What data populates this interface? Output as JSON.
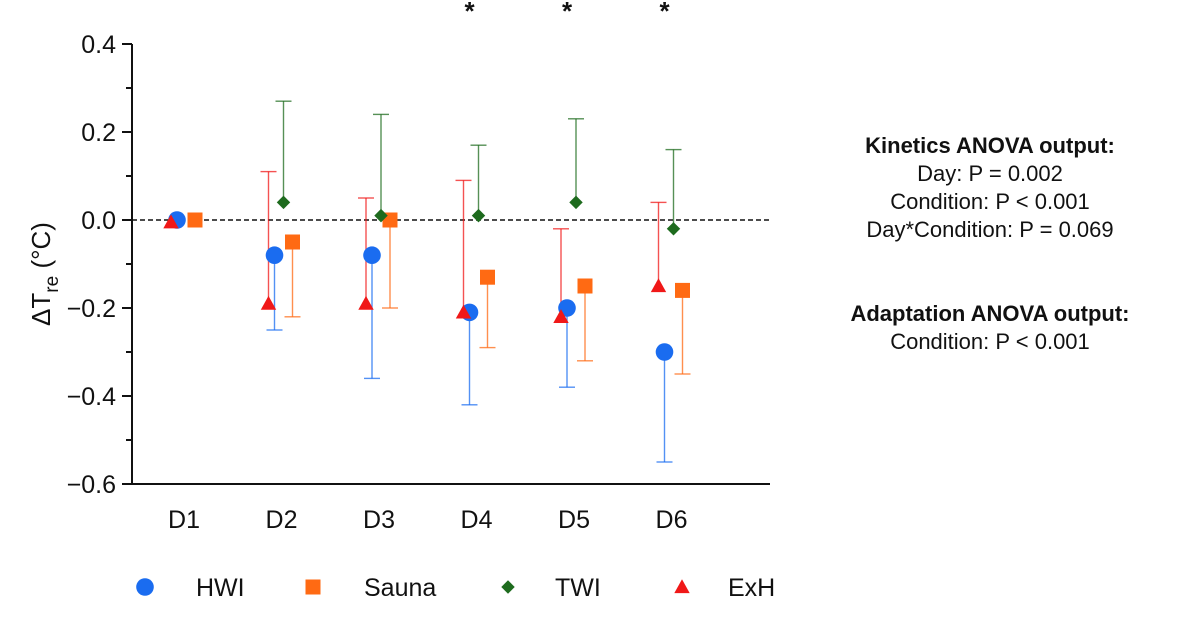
{
  "chart_data": {
    "type": "scatter",
    "ylabel": "ΔT",
    "ylabel_sub": "re",
    "ylabel_unit": "(°C)",
    "categories": [
      "D1",
      "D2",
      "D3",
      "D4",
      "D5",
      "D6"
    ],
    "ylim": [
      -0.6,
      0.4
    ],
    "yticks": [
      0.4,
      0.2,
      0.0,
      -0.2,
      -0.4,
      -0.6
    ],
    "ytick_labels": [
      "0.4",
      "0.2",
      "0.0",
      "−0.2",
      "−0.4",
      "−0.6"
    ],
    "reference_line": 0,
    "significance": [
      {
        "category": "D4",
        "label": "*"
      },
      {
        "category": "D5",
        "label": "*"
      },
      {
        "category": "D6",
        "label": "*"
      }
    ],
    "legend_position": "bottom",
    "series": [
      {
        "name": "HWI",
        "color": "#1a6cf0",
        "marker": "circle",
        "values": [
          0,
          -0.08,
          -0.08,
          -0.21,
          -0.2,
          -0.3
        ],
        "err_upper": [
          null,
          null,
          null,
          null,
          null,
          null
        ],
        "err_lower": [
          null,
          -0.25,
          -0.36,
          -0.42,
          -0.38,
          -0.55
        ]
      },
      {
        "name": "Sauna",
        "color": "#ff6a13",
        "marker": "square",
        "values": [
          0,
          -0.05,
          0.0,
          -0.13,
          -0.15,
          -0.16
        ],
        "err_upper": [
          null,
          null,
          null,
          null,
          null,
          null
        ],
        "err_lower": [
          null,
          -0.22,
          -0.2,
          -0.29,
          -0.32,
          -0.35
        ]
      },
      {
        "name": "TWI",
        "color": "#1e6b1e",
        "marker": "diamond",
        "values": [
          null,
          0.04,
          0.01,
          0.01,
          0.04,
          -0.02
        ],
        "err_upper": [
          null,
          0.27,
          0.24,
          0.17,
          0.23,
          0.16
        ],
        "err_lower": [
          null,
          null,
          null,
          null,
          null,
          null
        ]
      },
      {
        "name": "ExH",
        "color": "#f01818",
        "marker": "triangle",
        "values": [
          -0.005,
          -0.19,
          -0.19,
          -0.21,
          -0.22,
          -0.15
        ],
        "err_upper": [
          null,
          0.11,
          0.05,
          0.09,
          -0.02,
          0.04
        ],
        "err_lower": [
          null,
          null,
          null,
          null,
          null,
          null
        ]
      }
    ]
  },
  "anova": {
    "kinetics_title": "Kinetics ANOVA output:",
    "kinetics_lines": [
      "Day: P = 0.002",
      "Condition: P < 0.001",
      "Day*Condition: P = 0.069"
    ],
    "adaptation_title": "Adaptation ANOVA output:",
    "adaptation_lines": [
      "Condition: P < 0.001"
    ]
  }
}
